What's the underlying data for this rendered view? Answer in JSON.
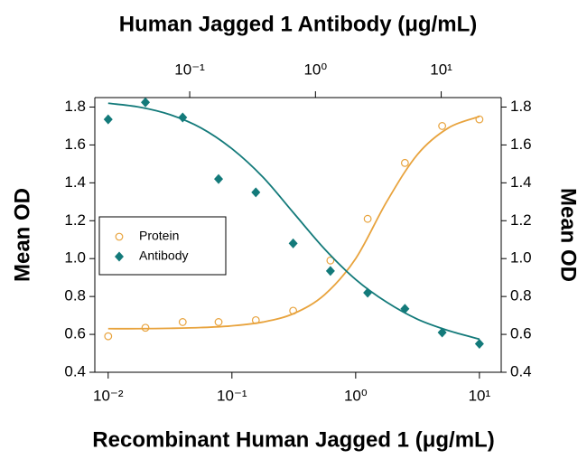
{
  "chart_data": {
    "type": "scatter",
    "title": "Human Jagged 1 Antibody (μg/mL)",
    "x_label": "Recombinant Human Jagged 1 (μg/mL)",
    "y_label": "Mean OD",
    "y2_label": "Mean OD",
    "x_scale": "log",
    "x2_scale": "log",
    "xlim": [
      0.0078,
      15
    ],
    "xticks": [
      {
        "value": 0.01,
        "label": "10⁻²"
      },
      {
        "value": 0.1,
        "label": "10⁻¹"
      },
      {
        "value": 1,
        "label": "10⁰"
      },
      {
        "value": 10,
        "label": "10¹"
      }
    ],
    "x2lim": [
      0.0176,
      30
    ],
    "x2ticks": [
      {
        "value": 0.1,
        "label": "10⁻¹"
      },
      {
        "value": 1,
        "label": "10⁰"
      },
      {
        "value": 10,
        "label": "10¹"
      }
    ],
    "ylim": [
      0.4,
      1.85
    ],
    "yticks": [
      0.4,
      0.6,
      0.8,
      {
        "value": 1,
        "label": "1.0"
      },
      1.2,
      1.4,
      1.6,
      1.8
    ],
    "x": [
      0.01,
      0.02,
      0.04,
      0.078,
      0.156,
      0.3125,
      0.625,
      1.25,
      2.5,
      5,
      10
    ],
    "fit_x": [
      0.01,
      0.0178,
      0.0316,
      0.0562,
      0.1,
      0.178,
      0.316,
      0.562,
      1,
      1.78,
      3.16,
      5.62,
      10
    ],
    "legend": "left",
    "series": [
      {
        "name": "Protein",
        "color": "#e8a33d",
        "marker": "circle",
        "values": [
          0.59,
          0.635,
          0.665,
          0.665,
          0.675,
          0.725,
          0.99,
          1.21,
          1.505,
          1.7,
          1.735
        ],
        "fit": [
          0.63,
          0.63,
          0.632,
          0.636,
          0.645,
          0.665,
          0.71,
          0.81,
          1.0,
          1.3,
          1.55,
          1.69,
          1.75
        ]
      },
      {
        "name": "Antibody",
        "color": "#137a7a",
        "marker": "diamond",
        "values": [
          1.735,
          1.825,
          1.745,
          1.42,
          1.35,
          1.08,
          0.935,
          0.82,
          0.735,
          0.61,
          0.55
        ],
        "fit": [
          1.82,
          1.8,
          1.76,
          1.69,
          1.58,
          1.43,
          1.24,
          1.05,
          0.89,
          0.77,
          0.68,
          0.62,
          0.575
        ]
      }
    ]
  }
}
